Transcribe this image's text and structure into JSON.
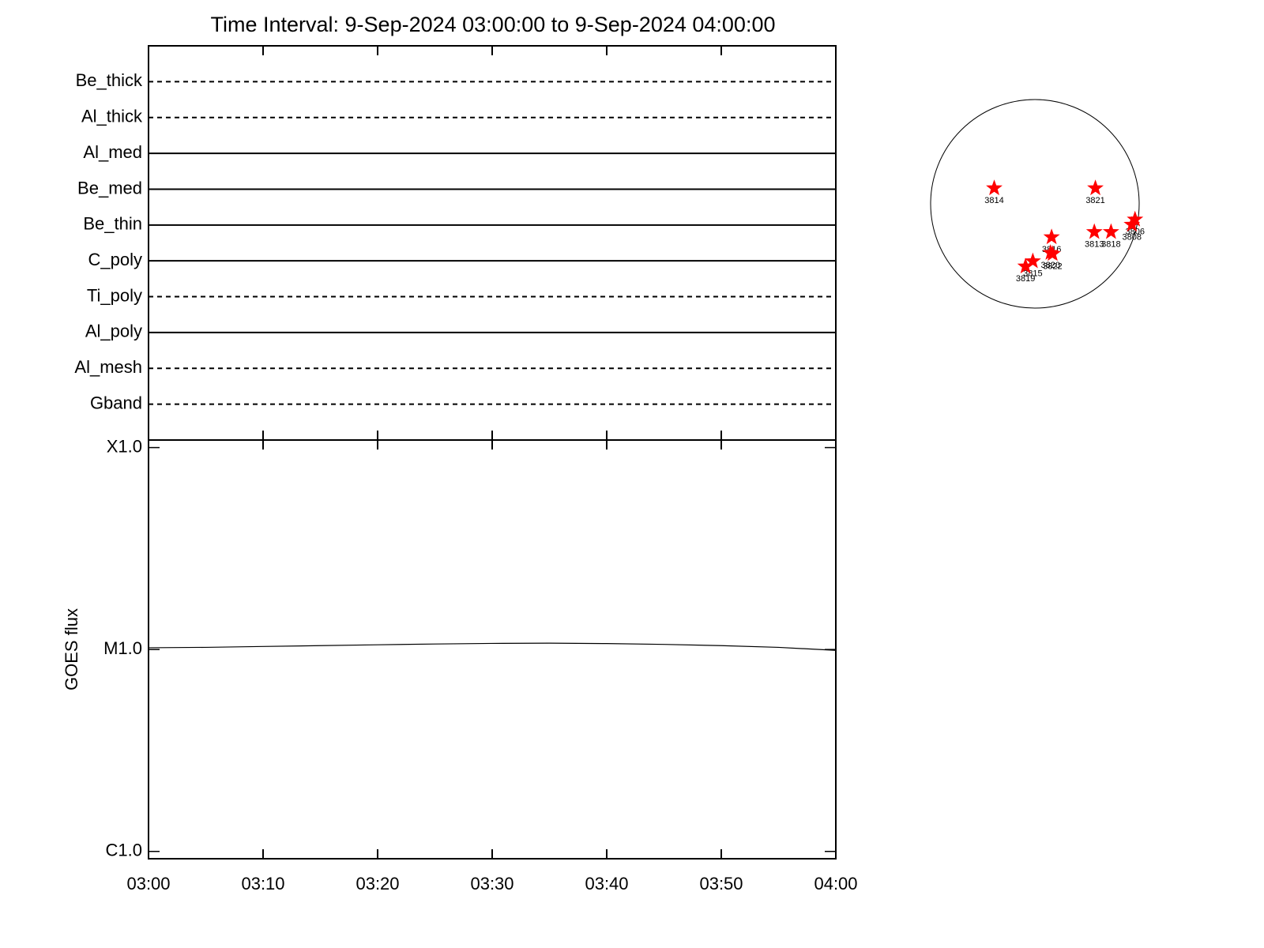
{
  "chart_data": [
    {
      "type": "status",
      "title": "Time Interval:  9-Sep-2024 03:00:00 to  9-Sep-2024 04:00:00",
      "categories": [
        "Be_thick",
        "Al_thick",
        "Al_med",
        "Be_med",
        "Be_thin",
        "C_poly",
        "Ti_poly",
        "Al_poly",
        "Al_mesh",
        "Gband"
      ],
      "styles": [
        "dashed",
        "dashed",
        "solid",
        "solid",
        "solid",
        "solid",
        "dashed",
        "solid",
        "dashed",
        "dashed"
      ]
    },
    {
      "type": "line",
      "ylabel": "GOES flux",
      "x": [
        "03:00",
        "03:05",
        "03:10",
        "03:15",
        "03:20",
        "03:25",
        "03:30",
        "03:35",
        "03:40",
        "03:45",
        "03:50",
        "03:55",
        "04:00"
      ],
      "series": [
        {
          "color": "#000000",
          "values": [
            1.02e-05,
            1.025e-05,
            1.035e-05,
            1.045e-05,
            1.055e-05,
            1.065e-05,
            1.072e-05,
            1.075e-05,
            1.07e-05,
            1.06e-05,
            1.045e-05,
            1.025e-05,
            9.9e-06
          ]
        }
      ],
      "xlim": [
        "03:00",
        "04:00"
      ],
      "xticks": [
        "03:00",
        "03:10",
        "03:20",
        "03:30",
        "03:40",
        "03:50",
        "04:00"
      ],
      "ylim": [
        9.2e-07,
        0.000109
      ],
      "yticks": [
        {
          "value": 1e-06,
          "label": "C1.0"
        },
        {
          "value": 1e-05,
          "label": "M1.0"
        },
        {
          "value": 0.0001,
          "label": "X1.0"
        }
      ],
      "log_y": true
    },
    {
      "type": "scatter",
      "color": "#ff0000",
      "labels": [
        "3814",
        "3821",
        "3816",
        "3813",
        "3818",
        "3806",
        "3808",
        "3815",
        "3819",
        "3820",
        "3822"
      ],
      "x": [
        -0.39,
        0.58,
        0.16,
        0.57,
        0.73,
        0.96,
        0.93,
        -0.02,
        -0.09,
        0.15,
        0.17
      ],
      "y": [
        0.15,
        0.15,
        -0.32,
        -0.27,
        -0.27,
        -0.15,
        -0.2,
        -0.55,
        -0.6,
        -0.47,
        -0.48
      ]
    }
  ]
}
